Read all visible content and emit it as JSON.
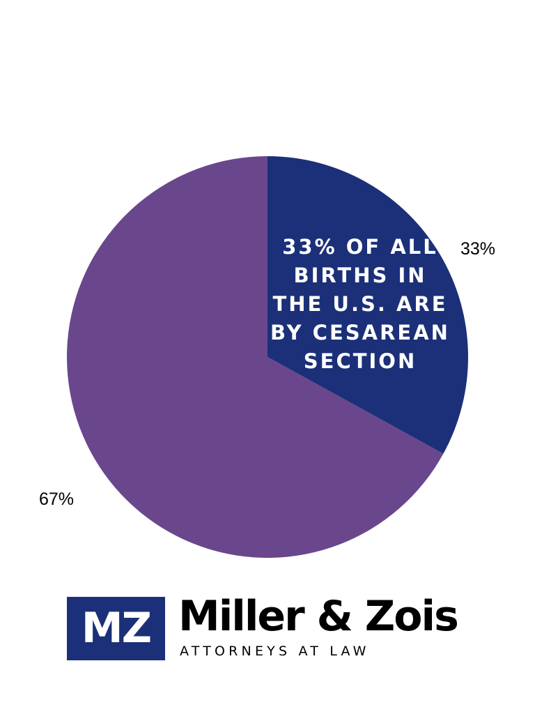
{
  "chart_data": {
    "type": "pie",
    "categories": [
      "",
      ""
    ],
    "values": [
      33,
      67
    ],
    "data_labels": [
      "33%",
      "67%"
    ],
    "colors": [
      "#1b3078",
      "#6a468c"
    ],
    "annotation": [
      "33% OF ALL",
      "BIRTHS IN",
      "THE U.S. ARE",
      "BY CESAREAN",
      "SECTION"
    ],
    "title": "",
    "legend": "none"
  },
  "logo": {
    "mark": "MZ",
    "name": "Miller & Zois",
    "tagline": "ATTORNEYS AT LAW",
    "mark_color": "#1b3078"
  }
}
